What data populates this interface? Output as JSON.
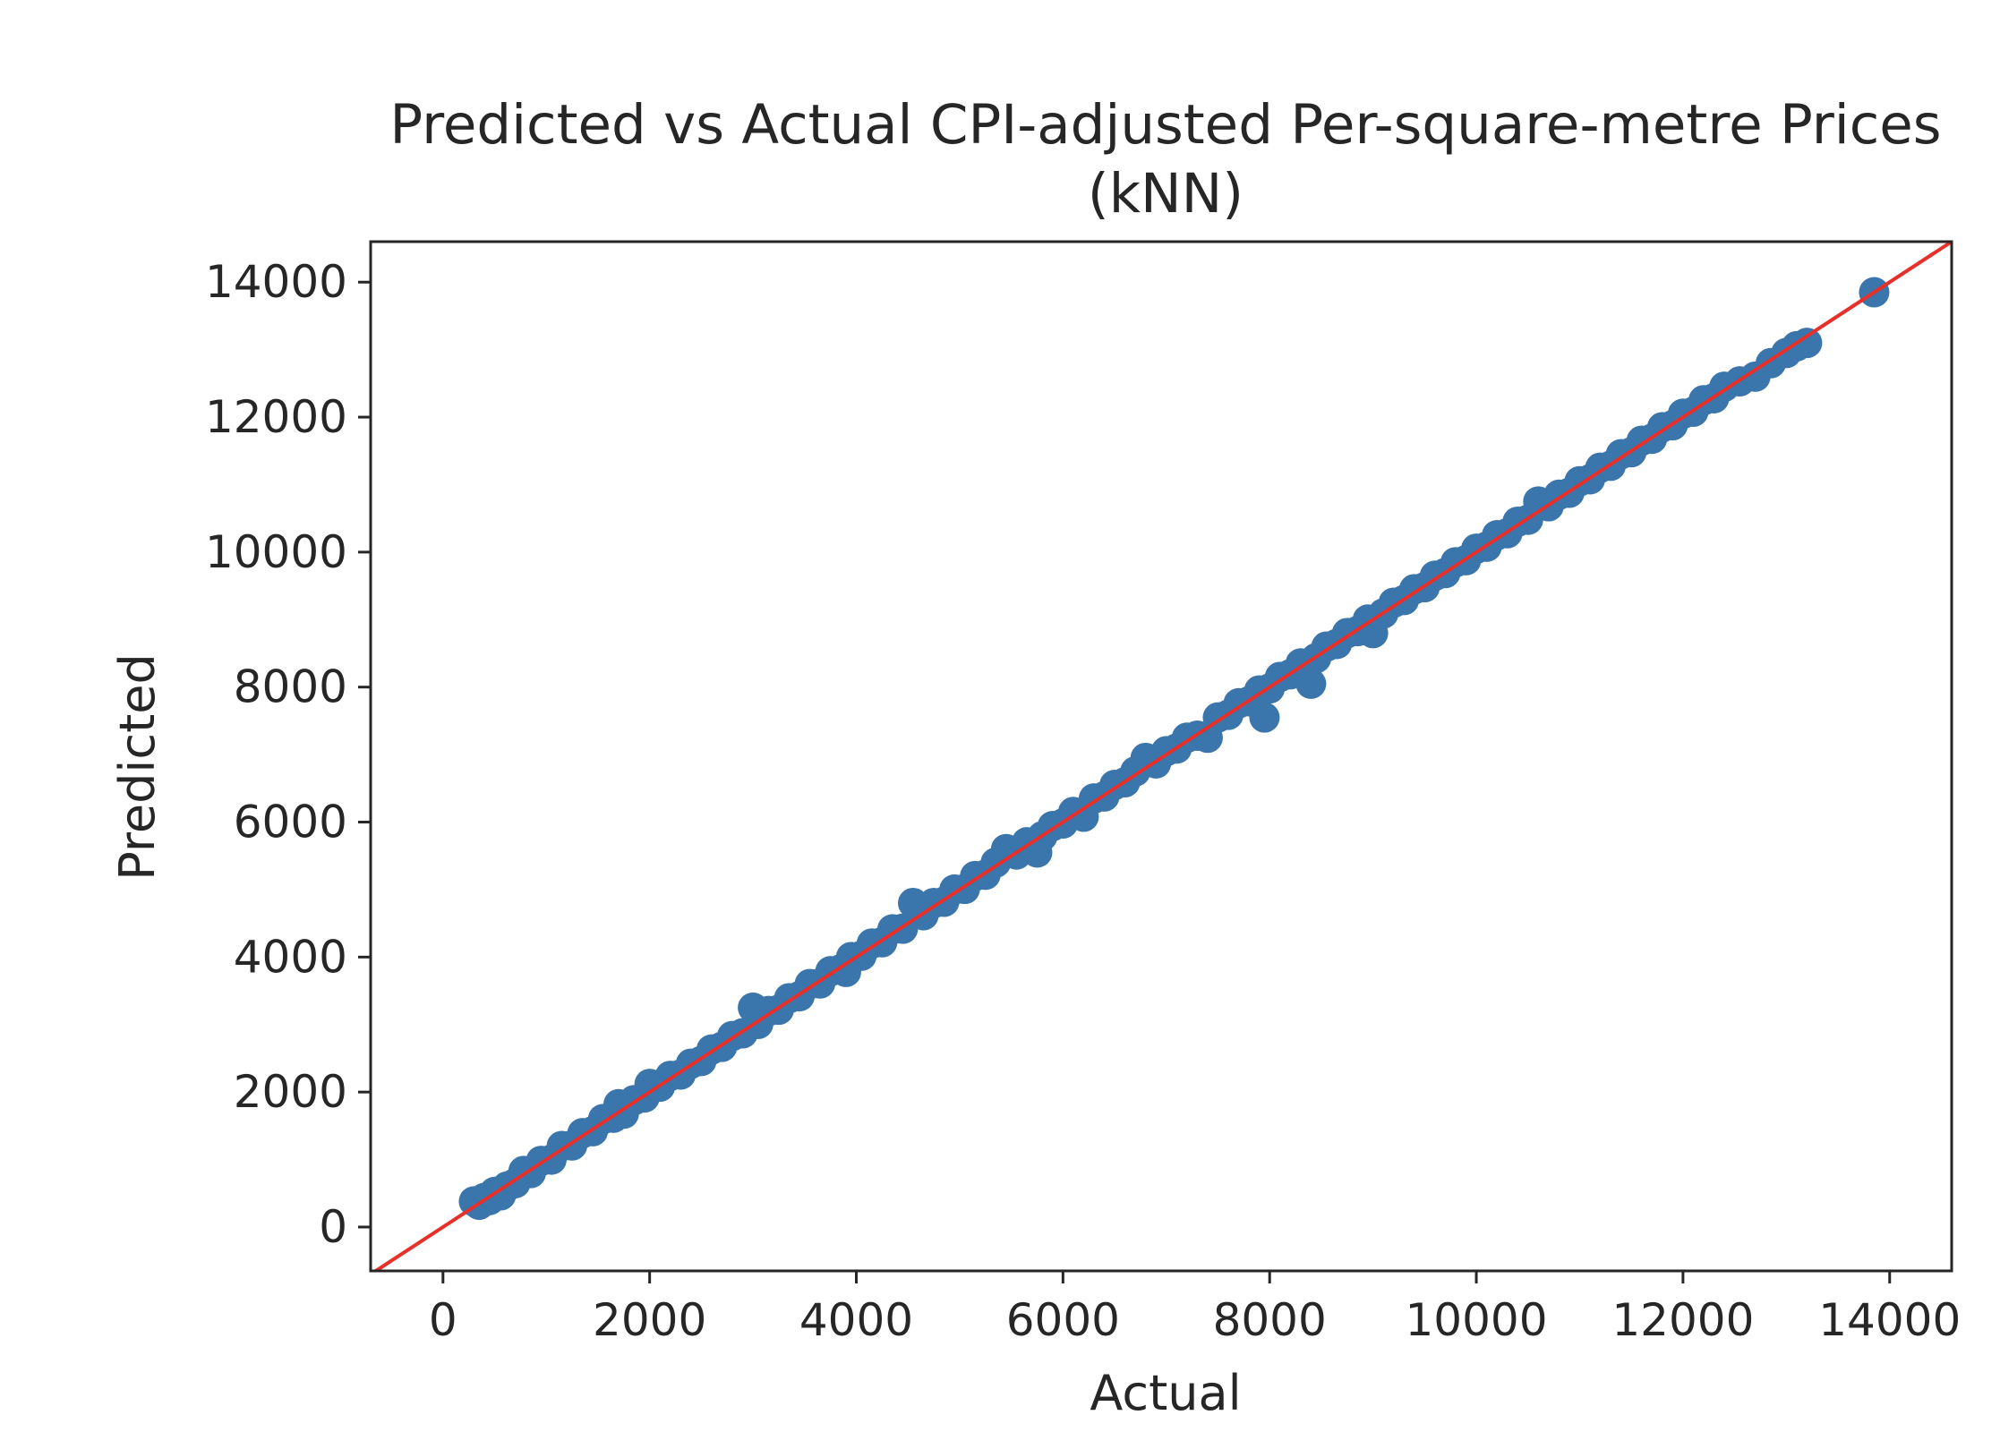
{
  "chart_data": {
    "type": "scatter",
    "title_line1": "Predicted vs Actual CPI-adjusted Per-square-metre Prices",
    "title_line2": "(kNN)",
    "xlabel": "Actual",
    "ylabel": "Predicted",
    "xlim": [
      -700,
      14600
    ],
    "ylim": [
      -650,
      14600
    ],
    "xticks": [
      0,
      2000,
      4000,
      6000,
      8000,
      10000,
      12000,
      14000
    ],
    "yticks": [
      0,
      2000,
      4000,
      6000,
      8000,
      10000,
      12000,
      14000
    ],
    "grid": false,
    "legend": "none",
    "colors": {
      "points": "#3a75ab",
      "reference_line": "#e8302a",
      "axes": "#262626"
    },
    "reference_line": {
      "name": "y = x",
      "from": [
        -700,
        -700
      ],
      "to": [
        14600,
        14600
      ]
    },
    "series": [
      {
        "points": [
          [
            300,
            380
          ],
          [
            350,
            330
          ],
          [
            400,
            430
          ],
          [
            450,
            400
          ],
          [
            500,
            520
          ],
          [
            560,
            470
          ],
          [
            620,
            600
          ],
          [
            700,
            650
          ],
          [
            780,
            830
          ],
          [
            850,
            800
          ],
          [
            950,
            980
          ],
          [
            1050,
            1000
          ],
          [
            1150,
            1200
          ],
          [
            1250,
            1210
          ],
          [
            1350,
            1390
          ],
          [
            1450,
            1420
          ],
          [
            1550,
            1600
          ],
          [
            1650,
            1620
          ],
          [
            1700,
            1820
          ],
          [
            1750,
            1680
          ],
          [
            1850,
            1880
          ],
          [
            1950,
            1920
          ],
          [
            2000,
            2120
          ],
          [
            2100,
            2080
          ],
          [
            2200,
            2240
          ],
          [
            2300,
            2260
          ],
          [
            2400,
            2420
          ],
          [
            2500,
            2460
          ],
          [
            2600,
            2630
          ],
          [
            2700,
            2670
          ],
          [
            2800,
            2830
          ],
          [
            2900,
            2870
          ],
          [
            3000,
            3250
          ],
          [
            3050,
            3010
          ],
          [
            3150,
            3200
          ],
          [
            3250,
            3220
          ],
          [
            3350,
            3390
          ],
          [
            3450,
            3420
          ],
          [
            3550,
            3600
          ],
          [
            3650,
            3610
          ],
          [
            3750,
            3790
          ],
          [
            3850,
            3820
          ],
          [
            3900,
            3780
          ],
          [
            3950,
            4000
          ],
          [
            4050,
            4020
          ],
          [
            4150,
            4200
          ],
          [
            4250,
            4220
          ],
          [
            4350,
            4410
          ],
          [
            4450,
            4420
          ],
          [
            4550,
            4800
          ],
          [
            4650,
            4620
          ],
          [
            4750,
            4800
          ],
          [
            4850,
            4820
          ],
          [
            4950,
            5000
          ],
          [
            5050,
            5010
          ],
          [
            5150,
            5200
          ],
          [
            5250,
            5220
          ],
          [
            5350,
            5400
          ],
          [
            5450,
            5600
          ],
          [
            5550,
            5520
          ],
          [
            5650,
            5700
          ],
          [
            5750,
            5550
          ],
          [
            5800,
            5790
          ],
          [
            5900,
            5940
          ],
          [
            6000,
            5980
          ],
          [
            6100,
            6150
          ],
          [
            6200,
            6080
          ],
          [
            6300,
            6350
          ],
          [
            6400,
            6380
          ],
          [
            6500,
            6550
          ],
          [
            6600,
            6590
          ],
          [
            6700,
            6750
          ],
          [
            6800,
            6950
          ],
          [
            6900,
            6870
          ],
          [
            7000,
            7050
          ],
          [
            7100,
            7090
          ],
          [
            7200,
            7250
          ],
          [
            7300,
            7280
          ],
          [
            7400,
            7250
          ],
          [
            7500,
            7550
          ],
          [
            7600,
            7590
          ],
          [
            7700,
            7760
          ],
          [
            7800,
            7790
          ],
          [
            7900,
            7950
          ],
          [
            7950,
            7550
          ],
          [
            8000,
            7980
          ],
          [
            8100,
            8150
          ],
          [
            8200,
            8190
          ],
          [
            8300,
            8350
          ],
          [
            8400,
            8050
          ],
          [
            8450,
            8430
          ],
          [
            8550,
            8600
          ],
          [
            8650,
            8640
          ],
          [
            8750,
            8800
          ],
          [
            8850,
            8830
          ],
          [
            8950,
            9000
          ],
          [
            9000,
            8800
          ],
          [
            9100,
            9090
          ],
          [
            9200,
            9250
          ],
          [
            9300,
            9290
          ],
          [
            9400,
            9450
          ],
          [
            9500,
            9480
          ],
          [
            9600,
            9650
          ],
          [
            9700,
            9690
          ],
          [
            9800,
            9850
          ],
          [
            9900,
            9880
          ],
          [
            10000,
            10050
          ],
          [
            10100,
            10080
          ],
          [
            10200,
            10250
          ],
          [
            10300,
            10280
          ],
          [
            10400,
            10450
          ],
          [
            10500,
            10480
          ],
          [
            10600,
            10750
          ],
          [
            10700,
            10680
          ],
          [
            10800,
            10850
          ],
          [
            10900,
            10880
          ],
          [
            11000,
            11050
          ],
          [
            11100,
            11080
          ],
          [
            11200,
            11250
          ],
          [
            11300,
            11280
          ],
          [
            11400,
            11450
          ],
          [
            11500,
            11480
          ],
          [
            11600,
            11650
          ],
          [
            11700,
            11680
          ],
          [
            11800,
            11850
          ],
          [
            11900,
            11880
          ],
          [
            12000,
            12050
          ],
          [
            12100,
            12080
          ],
          [
            12200,
            12250
          ],
          [
            12300,
            12280
          ],
          [
            12400,
            12450
          ],
          [
            12550,
            12530
          ],
          [
            12700,
            12600
          ],
          [
            12850,
            12800
          ],
          [
            13000,
            12950
          ],
          [
            13100,
            13050
          ],
          [
            13200,
            13100
          ],
          [
            13850,
            13850
          ]
        ]
      }
    ]
  }
}
